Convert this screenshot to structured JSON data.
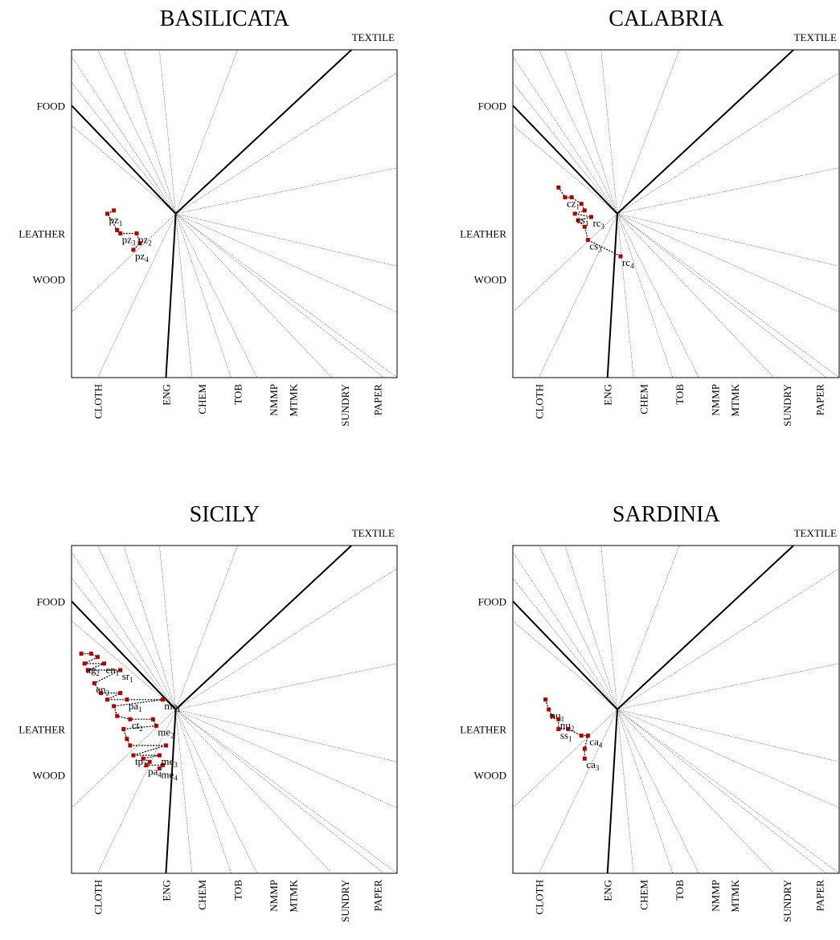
{
  "chart_data": [
    {
      "type": "scatter",
      "title": "BASILICATA",
      "variables": [
        "TEXTILE",
        "FOOD",
        "LEATHER",
        "WOOD",
        "CLOTH",
        "ENG",
        "CHEM",
        "TOB",
        "NMMP",
        "MTMK",
        "SUNDRY",
        "PAPER"
      ],
      "points": [
        {
          "label": "pz",
          "sub": "1",
          "u": 0.11,
          "v": 0.5
        },
        {
          "label": "pz",
          "sub": "2",
          "u": 0.2,
          "v": 0.44
        },
        {
          "label": "pz",
          "sub": "3",
          "u": 0.15,
          "v": 0.44
        },
        {
          "label": "pz",
          "sub": "4",
          "u": 0.19,
          "v": 0.39
        }
      ],
      "unlabeled_points": [
        {
          "u": 0.13,
          "v": 0.51
        },
        {
          "u": 0.14,
          "v": 0.45
        },
        {
          "u": 0.21,
          "v": 0.41
        }
      ]
    },
    {
      "type": "scatter",
      "title": "CALABRIA",
      "variables": [
        "TEXTILE",
        "FOOD",
        "LEATHER",
        "WOOD",
        "CLOTH",
        "ENG",
        "CHEM",
        "TOB",
        "NMMP",
        "MTMK",
        "SUNDRY",
        "PAPER"
      ],
      "points": [
        {
          "label": "cz",
          "sub": "1",
          "u": 0.16,
          "v": 0.55
        },
        {
          "label": "cs",
          "sub": "1",
          "u": 0.19,
          "v": 0.5
        },
        {
          "label": "rc",
          "sub": "3",
          "u": 0.24,
          "v": 0.49
        },
        {
          "label": "cs",
          "sub": "3",
          "u": 0.23,
          "v": 0.42
        },
        {
          "label": "rc",
          "sub": "4",
          "u": 0.33,
          "v": 0.37
        }
      ],
      "unlabeled_points": [
        {
          "u": 0.14,
          "v": 0.58
        },
        {
          "u": 0.18,
          "v": 0.55
        },
        {
          "u": 0.21,
          "v": 0.53
        },
        {
          "u": 0.22,
          "v": 0.51
        },
        {
          "u": 0.2,
          "v": 0.48
        },
        {
          "u": 0.22,
          "v": 0.46
        }
      ]
    },
    {
      "type": "scatter",
      "title": "SICILY",
      "variables": [
        "TEXTILE",
        "FOOD",
        "LEATHER",
        "WOOD",
        "CLOTH",
        "ENG",
        "CHEM",
        "TOB",
        "NMMP",
        "MTMK",
        "SUNDRY",
        "PAPER"
      ],
      "points": [
        {
          "label": "ag",
          "sub": "2",
          "u": 0.04,
          "v": 0.64
        },
        {
          "label": "en",
          "sub": "1",
          "u": 0.1,
          "v": 0.64
        },
        {
          "label": "en",
          "sub": "2",
          "u": 0.07,
          "v": 0.58
        },
        {
          "label": "sr",
          "sub": "1",
          "u": 0.15,
          "v": 0.62
        },
        {
          "label": "me",
          "sub": "1",
          "u": 0.28,
          "v": 0.53
        },
        {
          "label": "pa",
          "sub": "1",
          "u": 0.17,
          "v": 0.53
        },
        {
          "label": "ct",
          "sub": "2",
          "u": 0.18,
          "v": 0.47
        },
        {
          "label": "me",
          "sub": "2",
          "u": 0.26,
          "v": 0.45
        },
        {
          "label": "me",
          "sub": "3",
          "u": 0.27,
          "v": 0.36
        },
        {
          "label": "tp",
          "sub": "2",
          "u": 0.19,
          "v": 0.36
        },
        {
          "label": "pa",
          "sub": "4",
          "u": 0.23,
          "v": 0.33
        },
        {
          "label": "me",
          "sub": "4",
          "u": 0.27,
          "v": 0.32
        }
      ],
      "unlabeled_points": [
        {
          "u": 0.03,
          "v": 0.67
        },
        {
          "u": 0.06,
          "v": 0.67
        },
        {
          "u": 0.08,
          "v": 0.66
        },
        {
          "u": 0.05,
          "v": 0.62
        },
        {
          "u": 0.09,
          "v": 0.55
        },
        {
          "u": 0.11,
          "v": 0.53
        },
        {
          "u": 0.13,
          "v": 0.51
        },
        {
          "u": 0.15,
          "v": 0.55
        },
        {
          "u": 0.14,
          "v": 0.48
        },
        {
          "u": 0.16,
          "v": 0.44
        },
        {
          "u": 0.17,
          "v": 0.41
        },
        {
          "u": 0.18,
          "v": 0.39
        },
        {
          "u": 0.22,
          "v": 0.35
        },
        {
          "u": 0.24,
          "v": 0.34
        },
        {
          "u": 0.25,
          "v": 0.47
        },
        {
          "u": 0.29,
          "v": 0.39
        },
        {
          "u": 0.28,
          "v": 0.33
        }
      ]
    },
    {
      "type": "scatter",
      "title": "SARDINIA",
      "variables": [
        "TEXTILE",
        "FOOD",
        "LEATHER",
        "WOOD",
        "CLOTH",
        "ENG",
        "CHEM",
        "TOB",
        "NMMP",
        "MTMK",
        "SUNDRY",
        "PAPER"
      ],
      "points": [
        {
          "label": "nu",
          "sub": "1",
          "u": 0.11,
          "v": 0.5
        },
        {
          "label": "nu",
          "sub": "2",
          "u": 0.14,
          "v": 0.47
        },
        {
          "label": "ss",
          "sub": "1",
          "u": 0.14,
          "v": 0.44
        },
        {
          "label": "ca",
          "sub": "4",
          "u": 0.23,
          "v": 0.42
        },
        {
          "label": "ca",
          "sub": "3",
          "u": 0.22,
          "v": 0.35
        }
      ],
      "unlabeled_points": [
        {
          "u": 0.1,
          "v": 0.53
        },
        {
          "u": 0.12,
          "v": 0.48
        },
        {
          "u": 0.17,
          "v": 0.44
        },
        {
          "u": 0.21,
          "v": 0.42
        },
        {
          "u": 0.22,
          "v": 0.38
        }
      ]
    }
  ]
}
